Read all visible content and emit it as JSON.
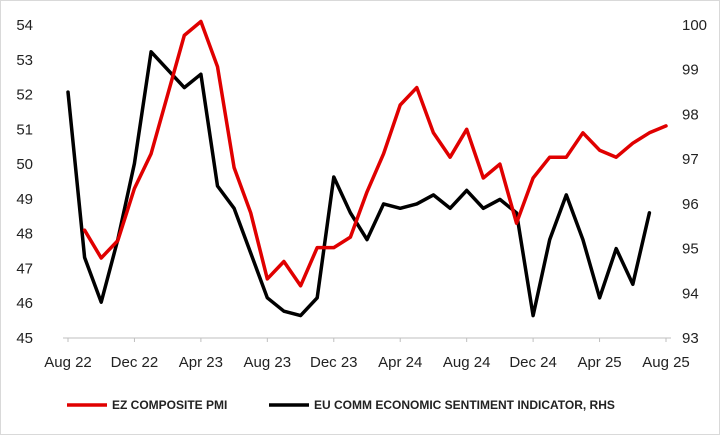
{
  "chart_data": {
    "type": "line",
    "x_ticks": [
      "Aug 22",
      "Dec 22",
      "Apr 23",
      "Aug 23",
      "Dec 23",
      "Apr 24",
      "Aug 24",
      "Dec 24",
      "Apr 25",
      "Aug 25"
    ],
    "x_months": [
      "2022-08",
      "2022-09",
      "2022-10",
      "2022-11",
      "2022-12",
      "2023-01",
      "2023-02",
      "2023-03",
      "2023-04",
      "2023-05",
      "2023-06",
      "2023-07",
      "2023-08",
      "2023-09",
      "2023-10",
      "2023-11",
      "2023-12",
      "2024-01",
      "2024-02",
      "2024-03",
      "2024-04",
      "2024-05",
      "2024-06",
      "2024-07",
      "2024-08",
      "2024-09",
      "2024-10",
      "2024-11",
      "2024-12",
      "2025-01",
      "2025-02",
      "2025-03",
      "2025-04",
      "2025-05",
      "2025-06",
      "2025-07",
      "2025-08"
    ],
    "left_axis": {
      "ylim": [
        45,
        54
      ],
      "ticks": [
        45,
        46,
        47,
        48,
        49,
        50,
        51,
        52,
        53,
        54
      ]
    },
    "right_axis": {
      "ylim": [
        93,
        100
      ],
      "ticks": [
        93,
        94,
        95,
        96,
        97,
        98,
        99,
        100
      ]
    },
    "series": [
      {
        "name": "EZ COMPOSITE PMI",
        "axis": "left",
        "color": "#e00000",
        "start_index": 1,
        "values": [
          48.1,
          47.3,
          47.8,
          49.3,
          50.3,
          52.0,
          53.7,
          54.1,
          52.8,
          49.9,
          48.6,
          46.7,
          47.2,
          46.5,
          47.6,
          47.6,
          47.9,
          49.2,
          50.3,
          51.7,
          52.2,
          50.9,
          50.2,
          51.0,
          49.6,
          50.0,
          48.3,
          49.6,
          50.2,
          50.2,
          50.9,
          50.4,
          50.2,
          50.6,
          50.9,
          51.1
        ]
      },
      {
        "name": "EU COMM ECONOMIC SENTIMENT INDICATOR, RHS",
        "axis": "right",
        "color": "#000000",
        "start_index": 0,
        "values": [
          98.5,
          94.8,
          93.8,
          95.2,
          96.9,
          99.4,
          99.0,
          98.6,
          98.9,
          96.4,
          95.9,
          94.9,
          93.9,
          93.6,
          93.5,
          93.9,
          96.6,
          95.8,
          95.2,
          96.0,
          95.9,
          96.0,
          96.2,
          95.9,
          96.3,
          95.9,
          96.1,
          95.8,
          93.5,
          95.2,
          96.2,
          95.2,
          93.9,
          95.0,
          94.2,
          95.8
        ]
      }
    ],
    "grid": false,
    "legend_position": "bottom"
  },
  "legend": {
    "items": [
      {
        "label": "EZ COMPOSITE PMI",
        "color": "#e00000"
      },
      {
        "label": "EU COMM ECONOMIC SENTIMENT INDICATOR, RHS",
        "color": "#000000"
      }
    ]
  }
}
